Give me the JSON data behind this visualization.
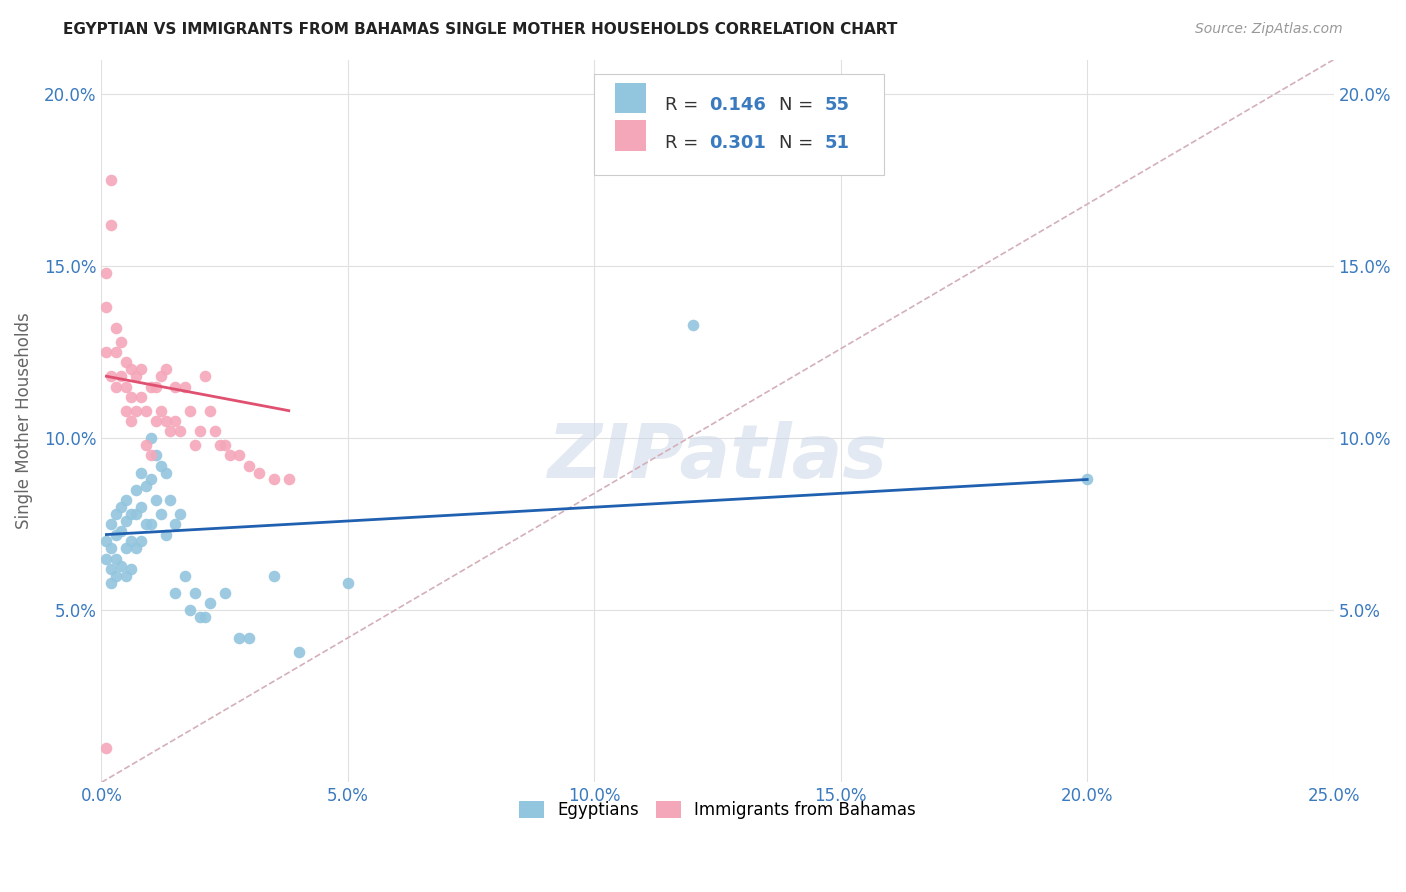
{
  "title": "EGYPTIAN VS IMMIGRANTS FROM BAHAMAS SINGLE MOTHER HOUSEHOLDS CORRELATION CHART",
  "source": "Source: ZipAtlas.com",
  "ylabel": "Single Mother Households",
  "xlim": [
    0.0,
    0.25
  ],
  "ylim": [
    0.0,
    0.21
  ],
  "xticks": [
    0.0,
    0.05,
    0.1,
    0.15,
    0.2,
    0.25
  ],
  "yticks": [
    0.05,
    0.1,
    0.15,
    0.2
  ],
  "ytick_labels": [
    "5.0%",
    "10.0%",
    "15.0%",
    "20.0%"
  ],
  "xtick_labels": [
    "0.0%",
    "5.0%",
    "10.0%",
    "15.0%",
    "20.0%",
    "25.0%"
  ],
  "legend_r1": "0.146",
  "legend_n1": "55",
  "legend_r2": "0.301",
  "legend_n2": "51",
  "color_blue": "#92c5de",
  "color_pink": "#f4a7b9",
  "color_blue_text": "#3a7abf",
  "color_pink_line": "#e05070",
  "color_blue_line": "#2060b0",
  "color_diagonal": "#d4b0b8",
  "background": "#ffffff",
  "watermark": "ZIPatlas",
  "egyptians_x": [
    0.001,
    0.001,
    0.002,
    0.002,
    0.002,
    0.002,
    0.003,
    0.003,
    0.003,
    0.003,
    0.004,
    0.004,
    0.004,
    0.005,
    0.005,
    0.005,
    0.005,
    0.006,
    0.006,
    0.006,
    0.007,
    0.007,
    0.007,
    0.008,
    0.008,
    0.008,
    0.009,
    0.009,
    0.01,
    0.01,
    0.01,
    0.011,
    0.011,
    0.012,
    0.012,
    0.013,
    0.013,
    0.014,
    0.015,
    0.015,
    0.016,
    0.017,
    0.018,
    0.019,
    0.02,
    0.021,
    0.022,
    0.025,
    0.028,
    0.03,
    0.035,
    0.04,
    0.05,
    0.12,
    0.2
  ],
  "egyptians_y": [
    0.07,
    0.065,
    0.075,
    0.068,
    0.062,
    0.058,
    0.078,
    0.072,
    0.065,
    0.06,
    0.08,
    0.073,
    0.063,
    0.082,
    0.076,
    0.068,
    0.06,
    0.078,
    0.07,
    0.062,
    0.085,
    0.078,
    0.068,
    0.09,
    0.08,
    0.07,
    0.086,
    0.075,
    0.1,
    0.088,
    0.075,
    0.095,
    0.082,
    0.092,
    0.078,
    0.09,
    0.072,
    0.082,
    0.075,
    0.055,
    0.078,
    0.06,
    0.05,
    0.055,
    0.048,
    0.048,
    0.052,
    0.055,
    0.042,
    0.042,
    0.06,
    0.038,
    0.058,
    0.133,
    0.088
  ],
  "bahamas_x": [
    0.001,
    0.001,
    0.001,
    0.002,
    0.002,
    0.002,
    0.003,
    0.003,
    0.003,
    0.004,
    0.004,
    0.005,
    0.005,
    0.005,
    0.006,
    0.006,
    0.006,
    0.007,
    0.007,
    0.008,
    0.008,
    0.009,
    0.009,
    0.01,
    0.01,
    0.011,
    0.011,
    0.012,
    0.012,
    0.013,
    0.013,
    0.014,
    0.015,
    0.015,
    0.016,
    0.017,
    0.018,
    0.019,
    0.02,
    0.021,
    0.022,
    0.023,
    0.024,
    0.025,
    0.026,
    0.028,
    0.03,
    0.032,
    0.035,
    0.038,
    0.001
  ],
  "bahamas_y": [
    0.148,
    0.138,
    0.125,
    0.175,
    0.162,
    0.118,
    0.132,
    0.125,
    0.115,
    0.128,
    0.118,
    0.122,
    0.115,
    0.108,
    0.12,
    0.112,
    0.105,
    0.118,
    0.108,
    0.12,
    0.112,
    0.108,
    0.098,
    0.115,
    0.095,
    0.115,
    0.105,
    0.118,
    0.108,
    0.12,
    0.105,
    0.102,
    0.115,
    0.105,
    0.102,
    0.115,
    0.108,
    0.098,
    0.102,
    0.118,
    0.108,
    0.102,
    0.098,
    0.098,
    0.095,
    0.095,
    0.092,
    0.09,
    0.088,
    0.088,
    0.01
  ],
  "blue_trend_x": [
    0.001,
    0.2
  ],
  "blue_trend_y": [
    0.072,
    0.088
  ],
  "pink_trend_x": [
    0.001,
    0.038
  ],
  "pink_trend_y": [
    0.118,
    0.108
  ]
}
